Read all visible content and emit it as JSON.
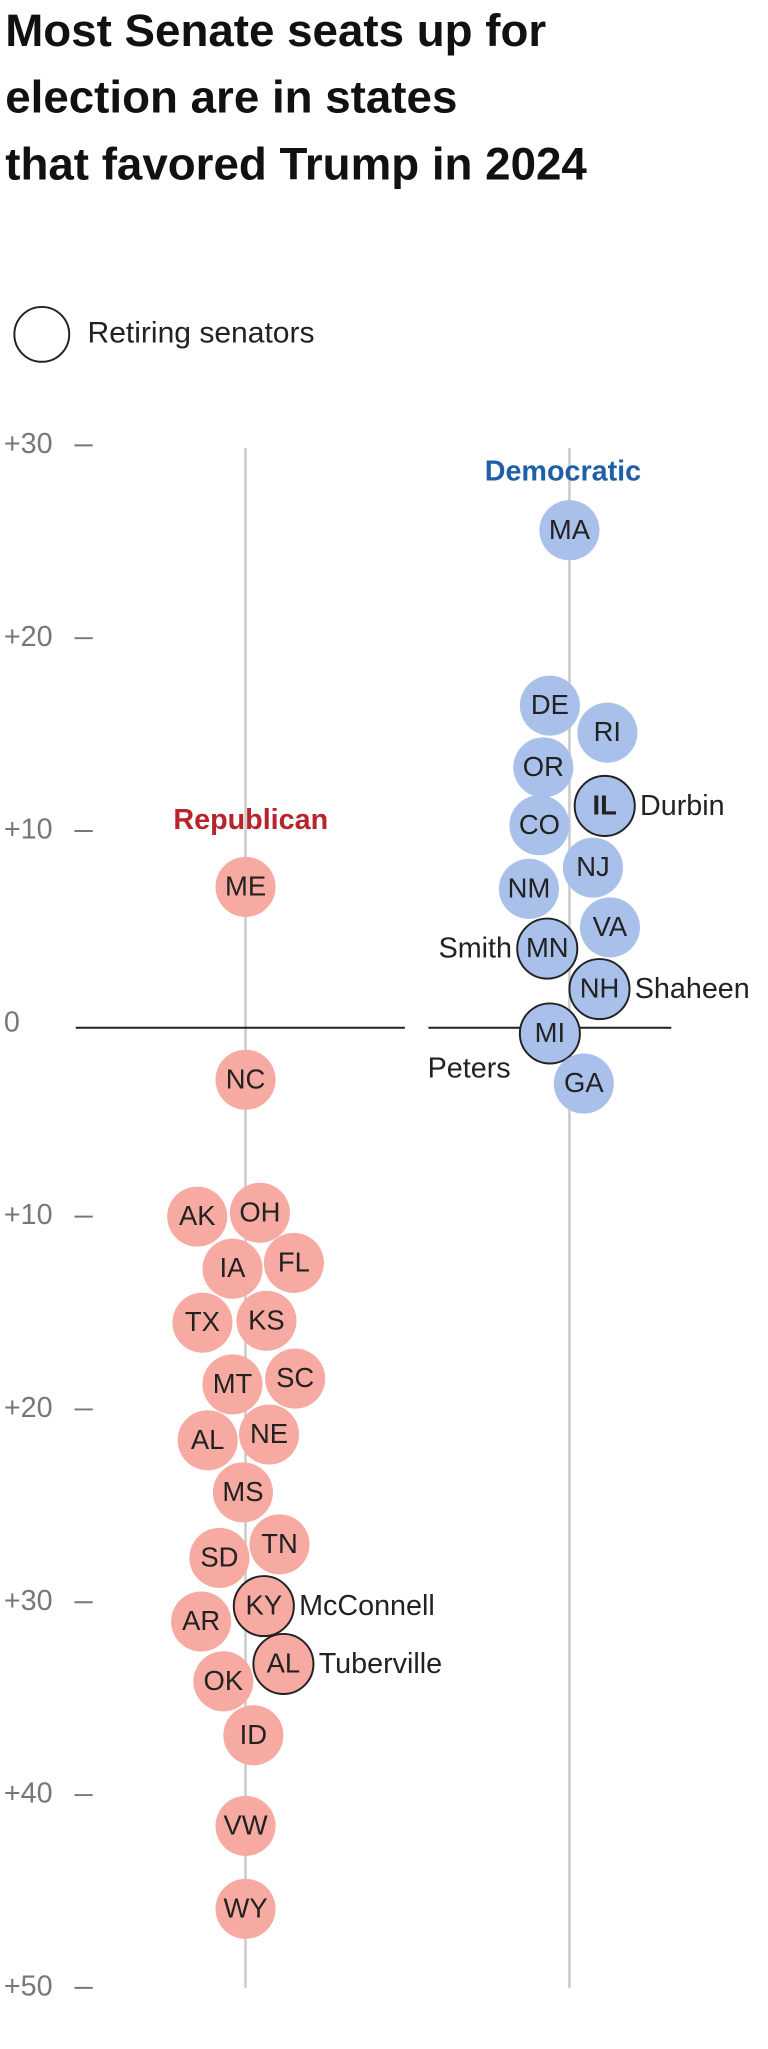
{
  "chart_data": {
    "type": "beeswarm",
    "title": [
      "Most Senate seats up for",
      "election are in states",
      "that favored Trump in 2024"
    ],
    "legend_label": "Retiring senators",
    "ylim": [
      -50,
      30
    ],
    "yticks": [
      {
        "value": 30,
        "label": "+30"
      },
      {
        "value": 20,
        "label": "+20"
      },
      {
        "value": 10,
        "label": "+10"
      },
      0,
      {
        "value": -10,
        "label": "+10"
      },
      {
        "value": -20,
        "label": "+20"
      },
      {
        "value": -30,
        "label": "+30"
      },
      {
        "value": -40,
        "label": "+40"
      },
      {
        "value": -50,
        "label": "+50"
      }
    ],
    "series": [
      {
        "name": "Democratic",
        "color": "#a9c1ea",
        "label_color": "#1f5fa8",
        "categories": [
          "MA",
          "DE",
          "RI",
          "OR",
          "IL",
          "CO",
          "NJ",
          "NM",
          "VA",
          "MN",
          "NH",
          "MI",
          "GA"
        ],
        "values": [
          25.6,
          16.5,
          15.1,
          13.3,
          11.3,
          10.3,
          8.1,
          7.0,
          5.0,
          3.9,
          1.8,
          -0.5,
          -3.1
        ],
        "senators": [
          null,
          null,
          null,
          null,
          "Durbin",
          null,
          null,
          null,
          null,
          "Smith",
          "Shaheen",
          "Peters",
          null
        ]
      },
      {
        "name": "Republican",
        "color": "#f7aaa2",
        "label_color": "#b8242b",
        "categories": [
          "ME",
          "NC",
          "AK",
          "OH",
          "IA",
          "FL",
          "TX",
          "KS",
          "MT",
          "SC",
          "AL",
          "NE",
          "MS",
          "SD",
          "TN",
          "KY",
          "AR",
          "OK",
          "AL",
          "ID",
          "VW",
          "WY"
        ],
        "values": [
          7.1,
          -2.9,
          -10.0,
          -9.8,
          -12.7,
          -12.4,
          -15.5,
          -15.4,
          -18.7,
          -18.4,
          -21.6,
          -21.3,
          -24.3,
          -27.7,
          -27.0,
          -30.2,
          -31.0,
          -34.1,
          -33.2,
          -36.9,
          -41.6,
          -45.9
        ],
        "senators": [
          null,
          null,
          null,
          null,
          null,
          null,
          null,
          null,
          null,
          null,
          null,
          null,
          null,
          null,
          null,
          "McConnell",
          null,
          null,
          "Tuberville",
          null,
          null,
          null
        ]
      }
    ]
  }
}
